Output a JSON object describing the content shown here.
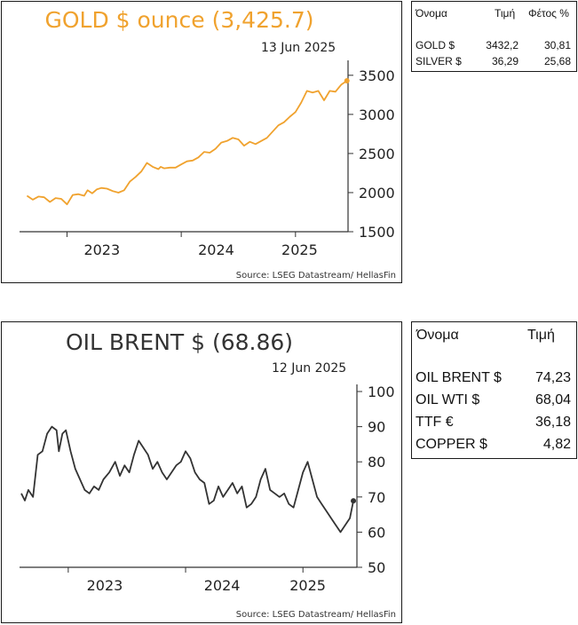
{
  "gold": {
    "title": "GOLD $ ounce (3,425.7)",
    "date": "13 Jun 2025",
    "source": "Source: LSEG Datastream/ HellasFin",
    "color": "#f0a22e"
  },
  "oil": {
    "title": "OIL BRENT $ (68.86)",
    "date": "12 Jun 2025",
    "source": "Source: LSEG Datastream/ HellasFin",
    "color": "#333333"
  },
  "metals_table": {
    "headers": [
      "Όνομα",
      "Τιμή",
      "Φέτος %"
    ],
    "rows": [
      {
        "name": "GOLD $",
        "price": "3432,2",
        "ytd": "30,81"
      },
      {
        "name": "SILVER $",
        "price": "36,29",
        "ytd": "25,68"
      }
    ]
  },
  "energy_table": {
    "headers": [
      "Όνομα",
      "Τιμή"
    ],
    "rows": [
      {
        "name": "OIL BRENT $",
        "price": "74,23"
      },
      {
        "name": "OIL WTI $",
        "price": "68,04"
      },
      {
        "name": "TTF €",
        "price": "36,18"
      },
      {
        "name": "COPPER $",
        "price": "4,82"
      }
    ]
  },
  "chart_data": [
    {
      "type": "line",
      "title": "GOLD $ ounce (3,425.7)",
      "annotation": "13 Jun 2025",
      "x_ticks": [
        "2023",
        "2024",
        "2025"
      ],
      "y_ticks": [
        1500,
        2000,
        2500,
        3000,
        3500
      ],
      "ylim": [
        1500,
        3600
      ],
      "xlim": [
        2022.6,
        2025.46
      ],
      "y_axis_side": "right",
      "color": "#f0a22e",
      "x": [
        2022.65,
        2022.7,
        2022.75,
        2022.8,
        2022.85,
        2022.9,
        2022.95,
        2023.0,
        2023.05,
        2023.1,
        2023.15,
        2023.18,
        2023.22,
        2023.26,
        2023.3,
        2023.35,
        2023.4,
        2023.45,
        2023.5,
        2023.55,
        2023.6,
        2023.65,
        2023.7,
        2023.75,
        2023.8,
        2023.82,
        2023.85,
        2023.9,
        2023.95,
        2024.0,
        2024.05,
        2024.1,
        2024.15,
        2024.2,
        2024.25,
        2024.3,
        2024.35,
        2024.4,
        2024.45,
        2024.5,
        2024.55,
        2024.6,
        2024.65,
        2024.7,
        2024.75,
        2024.8,
        2024.85,
        2024.9,
        2024.95,
        2025.0,
        2025.05,
        2025.1,
        2025.15,
        2025.2,
        2025.25,
        2025.3,
        2025.35,
        2025.4,
        2025.45
      ],
      "y": [
        1960,
        1910,
        1950,
        1940,
        1880,
        1930,
        1920,
        1850,
        1970,
        1980,
        1960,
        2030,
        1990,
        2040,
        2060,
        2050,
        2020,
        2000,
        2030,
        2140,
        2200,
        2270,
        2380,
        2330,
        2300,
        2330,
        2310,
        2320,
        2320,
        2360,
        2400,
        2410,
        2450,
        2520,
        2510,
        2560,
        2640,
        2660,
        2700,
        2680,
        2600,
        2650,
        2620,
        2660,
        2700,
        2780,
        2860,
        2900,
        2970,
        3030,
        3150,
        3300,
        3280,
        3300,
        3180,
        3300,
        3290,
        3380,
        3430
      ]
    },
    {
      "type": "line",
      "title": "OIL BRENT $ (68.86)",
      "annotation": "12 Jun 2025",
      "x_ticks": [
        "2023",
        "2024",
        "2025"
      ],
      "y_ticks": [
        50,
        60,
        70,
        80,
        90,
        100
      ],
      "ylim": [
        50,
        100
      ],
      "xlim": [
        2022.6,
        2025.46
      ],
      "y_axis_side": "right",
      "color": "#333333",
      "x": [
        2022.6,
        2022.63,
        2022.66,
        2022.7,
        2022.74,
        2022.78,
        2022.82,
        2022.86,
        2022.9,
        2022.92,
        2022.95,
        2022.98,
        2023.02,
        2023.06,
        2023.1,
        2023.14,
        2023.18,
        2023.22,
        2023.26,
        2023.3,
        2023.35,
        2023.4,
        2023.44,
        2023.48,
        2023.52,
        2023.56,
        2023.6,
        2023.64,
        2023.68,
        2023.72,
        2023.76,
        2023.8,
        2023.84,
        2023.88,
        2023.92,
        2023.96,
        2024.0,
        2024.04,
        2024.08,
        2024.12,
        2024.16,
        2024.2,
        2024.24,
        2024.28,
        2024.32,
        2024.36,
        2024.4,
        2024.44,
        2024.48,
        2024.52,
        2024.56,
        2024.6,
        2024.64,
        2024.68,
        2024.72,
        2024.76,
        2024.8,
        2024.84,
        2024.88,
        2024.92,
        2024.96,
        2025.0,
        2025.04,
        2025.08,
        2025.12,
        2025.16,
        2025.2,
        2025.24,
        2025.28,
        2025.32,
        2025.36,
        2025.4,
        2025.43
      ],
      "y": [
        71,
        69,
        72,
        70,
        82,
        83,
        88,
        90,
        89,
        83,
        88,
        89,
        83,
        78,
        75,
        72,
        71,
        73,
        72,
        75,
        77,
        80,
        76,
        79,
        77,
        82,
        86,
        84,
        82,
        78,
        80,
        77,
        75,
        77,
        79,
        80,
        83,
        81,
        77,
        75,
        74,
        68,
        69,
        73,
        70,
        72,
        74,
        71,
        73,
        67,
        68,
        70,
        75,
        78,
        72,
        71,
        70,
        71,
        68,
        67,
        72,
        77,
        80,
        75,
        70,
        68,
        66,
        64,
        62,
        60,
        62,
        64,
        68.9
      ]
    }
  ]
}
